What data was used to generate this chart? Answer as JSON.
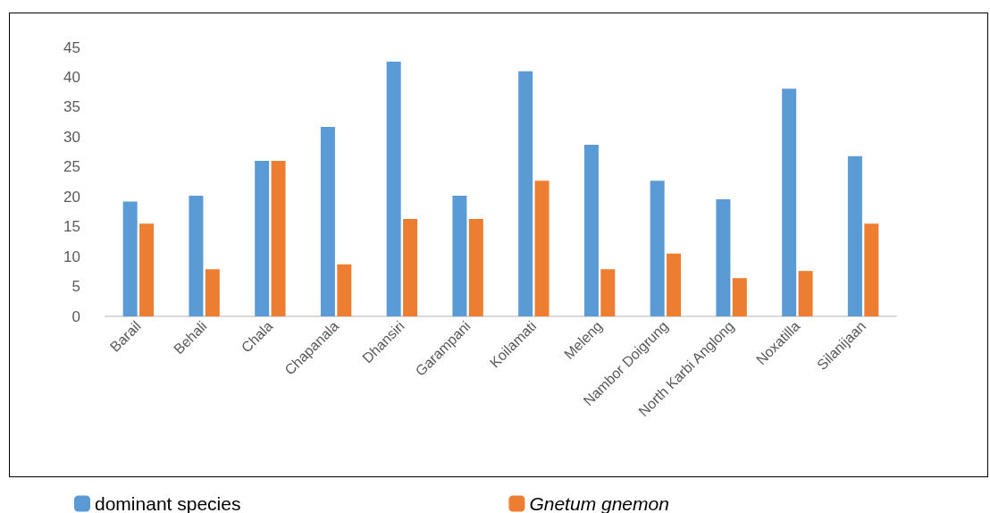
{
  "chart_data": {
    "type": "bar",
    "categories": [
      "Barail",
      "Behali",
      "Chala",
      "Chapanala",
      "Dhansiri",
      "Garampani",
      "Koilamati",
      "Meleng",
      "Nambor Doigrung",
      "North Karbi Anglong",
      "Noxatilla",
      "Silanijaan"
    ],
    "series": [
      {
        "name": "dominant species",
        "color": "#5b9bd5",
        "values": [
          19.2,
          20.2,
          26,
          31.7,
          42.6,
          20.2,
          41,
          28.7,
          22.7,
          19.6,
          38.1,
          26.8
        ]
      },
      {
        "name": "Gnetum gnemon",
        "color": "#ed7d31",
        "values": [
          15.5,
          7.9,
          26,
          8.7,
          16.3,
          16.3,
          22.7,
          7.9,
          10.5,
          6.4,
          7.6,
          15.5
        ]
      }
    ],
    "ylim": [
      0,
      45
    ],
    "yticks": [
      0,
      5,
      10,
      15,
      20,
      25,
      30,
      35,
      40,
      45
    ],
    "grid": false,
    "legend": "bottom"
  }
}
